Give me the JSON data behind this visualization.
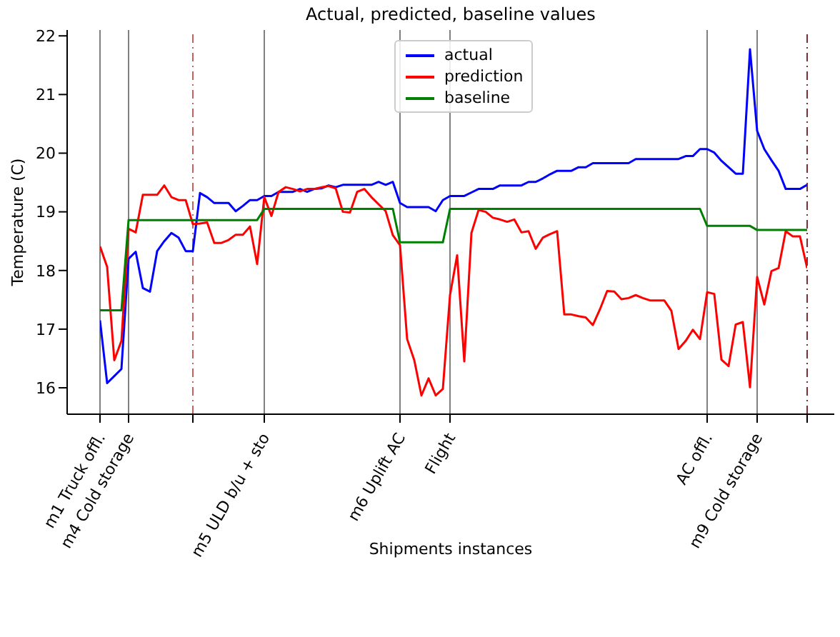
{
  "chart_data": {
    "type": "line",
    "title": "Actual, predicted, baseline values",
    "xlabel": "Shipments instances",
    "ylabel": "Temperature (C)",
    "ylim": [
      15.55,
      22.1
    ],
    "yticks": [
      16,
      17,
      18,
      19,
      20,
      21,
      22
    ],
    "categories": [
      "m1 Truck offl.",
      null,
      null,
      null,
      "m4 Cold storage",
      null,
      null,
      null,
      null,
      null,
      null,
      null,
      null,
      null,
      null,
      null,
      null,
      null,
      null,
      null,
      null,
      null,
      null,
      "m5 ULD b/u + sto",
      null,
      null,
      null,
      null,
      null,
      null,
      null,
      null,
      null,
      null,
      null,
      null,
      null,
      null,
      null,
      null,
      null,
      null,
      "m6 Uplift AC",
      null,
      null,
      null,
      null,
      null,
      null,
      "Flight",
      null,
      null,
      null,
      null,
      null,
      null,
      null,
      null,
      null,
      null,
      null,
      null,
      null,
      null,
      null,
      null,
      null,
      null,
      null,
      null,
      null,
      null,
      null,
      null,
      null,
      null,
      null,
      null,
      null,
      null,
      null,
      null,
      null,
      null,
      null,
      "AC offl.",
      null,
      null,
      null,
      null,
      null,
      null,
      "m9 Cold storage",
      null,
      null,
      null,
      null,
      null,
      null,
      null
    ],
    "grid": "x",
    "legend": "top",
    "series": [
      {
        "name": "actual",
        "color": "#0000ff",
        "values": [
          17.15,
          16.08,
          16.2,
          16.32,
          18.2,
          18.32,
          17.7,
          17.64,
          18.33,
          18.5,
          18.64,
          18.56,
          18.33,
          18.33,
          19.32,
          19.25,
          19.15,
          19.15,
          19.15,
          19.01,
          19.1,
          19.2,
          19.2,
          19.27,
          19.27,
          19.34,
          19.34,
          19.34,
          19.39,
          19.34,
          19.39,
          19.4,
          19.45,
          19.42,
          19.46,
          19.46,
          19.46,
          19.46,
          19.46,
          19.51,
          19.46,
          19.51,
          19.15,
          19.08,
          19.08,
          19.08,
          19.08,
          19.01,
          19.2,
          19.27,
          19.27,
          19.27,
          19.33,
          19.39,
          19.39,
          19.39,
          19.45,
          19.45,
          19.45,
          19.45,
          19.51,
          19.51,
          19.57,
          19.64,
          19.7,
          19.7,
          19.7,
          19.76,
          19.76,
          19.83,
          19.83,
          19.83,
          19.83,
          19.83,
          19.83,
          19.9,
          19.9,
          19.9,
          19.9,
          19.9,
          19.9,
          19.9,
          19.95,
          19.95,
          20.07,
          20.07,
          20.01,
          19.87,
          19.76,
          19.65,
          19.65,
          21.77,
          20.38,
          20.07,
          19.88,
          19.7,
          19.39,
          19.39,
          19.39,
          19.46
        ]
      },
      {
        "name": "prediction",
        "color": "#ff0000",
        "values": [
          18.41,
          18.06,
          16.47,
          16.8,
          18.71,
          18.65,
          19.29,
          19.29,
          19.29,
          19.45,
          19.25,
          19.2,
          19.2,
          18.79,
          18.8,
          18.82,
          18.47,
          18.47,
          18.52,
          18.61,
          18.61,
          18.75,
          18.11,
          19.25,
          18.93,
          19.34,
          19.42,
          19.39,
          19.35,
          19.39,
          19.39,
          19.42,
          19.44,
          19.4,
          19.0,
          18.99,
          19.34,
          19.39,
          19.25,
          19.13,
          19.01,
          18.6,
          18.43,
          16.83,
          16.47,
          15.87,
          16.16,
          15.87,
          15.98,
          17.58,
          18.26,
          16.45,
          18.64,
          19.03,
          19.0,
          18.9,
          18.87,
          18.83,
          18.87,
          18.65,
          18.67,
          18.37,
          18.56,
          18.62,
          18.67,
          17.25,
          17.25,
          17.22,
          17.2,
          17.07,
          17.34,
          17.65,
          17.64,
          17.51,
          17.53,
          17.58,
          17.53,
          17.49,
          17.49,
          17.49,
          17.31,
          16.66,
          16.8,
          16.99,
          16.83,
          17.63,
          17.6,
          16.48,
          16.37,
          17.08,
          17.12,
          16.01,
          17.89,
          17.42,
          17.99,
          18.04,
          18.67,
          18.58,
          18.58,
          18.04
        ]
      },
      {
        "name": "baseline",
        "color": "#008000",
        "values": [
          17.32,
          17.32,
          17.32,
          17.32,
          18.86,
          18.86,
          18.86,
          18.86,
          18.86,
          18.86,
          18.86,
          18.86,
          18.86,
          18.86,
          18.86,
          18.86,
          18.86,
          18.86,
          18.86,
          18.86,
          18.86,
          18.86,
          18.86,
          19.05,
          19.05,
          19.05,
          19.05,
          19.05,
          19.05,
          19.05,
          19.05,
          19.05,
          19.05,
          19.05,
          19.05,
          19.05,
          19.05,
          19.05,
          19.05,
          19.05,
          19.05,
          19.05,
          18.48,
          18.48,
          18.48,
          18.48,
          18.48,
          18.48,
          18.48,
          19.05,
          19.05,
          19.05,
          19.05,
          19.05,
          19.05,
          19.05,
          19.05,
          19.05,
          19.05,
          19.05,
          19.05,
          19.05,
          19.05,
          19.05,
          19.05,
          19.05,
          19.05,
          19.05,
          19.05,
          19.05,
          19.05,
          19.05,
          19.05,
          19.05,
          19.05,
          19.05,
          19.05,
          19.05,
          19.05,
          19.05,
          19.05,
          19.05,
          19.05,
          19.05,
          19.05,
          18.76,
          18.76,
          18.76,
          18.76,
          18.76,
          18.76,
          18.76,
          18.69,
          18.69,
          18.69,
          18.69,
          18.69,
          18.69,
          18.69,
          18.69
        ]
      }
    ]
  }
}
